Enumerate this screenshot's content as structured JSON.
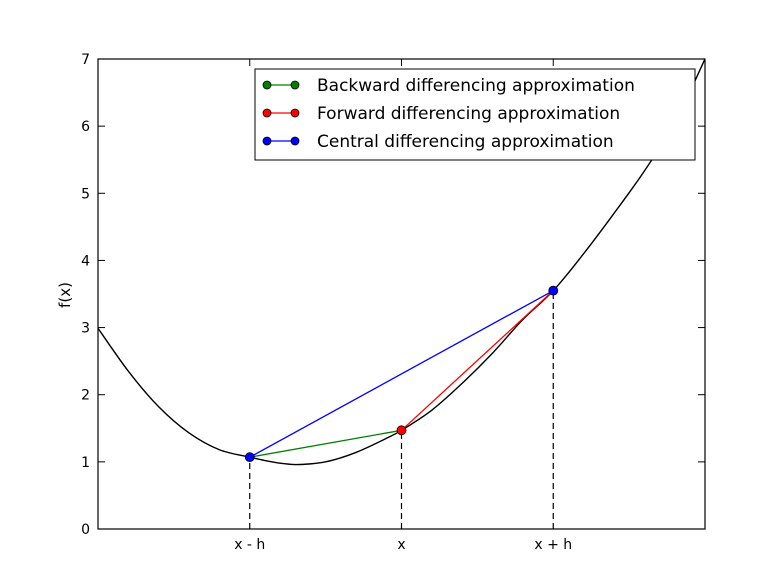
{
  "chart_data": {
    "type": "line",
    "title": "",
    "xlabel": "",
    "ylabel": "f(x)",
    "xlim": [
      0,
      4
    ],
    "ylim": [
      0,
      7
    ],
    "yticks": [
      "0",
      "1",
      "2",
      "3",
      "4",
      "5",
      "6",
      "7"
    ],
    "xticks": [
      {
        "x": 1,
        "label": "x - h"
      },
      {
        "x": 2,
        "label": "x"
      },
      {
        "x": 3,
        "label": "x + h"
      }
    ],
    "curve": {
      "color": "#000000",
      "points": [
        [
          0,
          2.99
        ],
        [
          0.2,
          2.35
        ],
        [
          0.4,
          1.82
        ],
        [
          0.6,
          1.43
        ],
        [
          0.8,
          1.18
        ],
        [
          1.0,
          1.07
        ],
        [
          1.1,
          1.02
        ],
        [
          1.2,
          0.98
        ],
        [
          1.3,
          0.96
        ],
        [
          1.4,
          0.97
        ],
        [
          1.5,
          1.0
        ],
        [
          1.6,
          1.06
        ],
        [
          1.7,
          1.14
        ],
        [
          1.8,
          1.24
        ],
        [
          1.9,
          1.35
        ],
        [
          2.0,
          1.47
        ],
        [
          2.2,
          1.77
        ],
        [
          2.4,
          2.17
        ],
        [
          2.6,
          2.62
        ],
        [
          2.8,
          3.12
        ],
        [
          3.0,
          3.55
        ],
        [
          3.2,
          4.1
        ],
        [
          3.4,
          4.7
        ],
        [
          3.6,
          5.33
        ],
        [
          3.8,
          6.05
        ],
        [
          4.0,
          7.0
        ]
      ]
    },
    "series": [
      {
        "name": "Backward differencing approximation",
        "color": "#008000",
        "points": [
          [
            1,
            1.07
          ],
          [
            2,
            1.47
          ]
        ]
      },
      {
        "name": "Forward differencing approximation",
        "color": "#ff0000",
        "points": [
          [
            2,
            1.47
          ],
          [
            3,
            3.55
          ]
        ]
      },
      {
        "name": "Central differencing approximation",
        "color": "#0000ff",
        "points": [
          [
            1,
            1.07
          ],
          [
            3,
            3.55
          ]
        ]
      }
    ],
    "markers": [
      {
        "x": 1,
        "y": 1.07,
        "color": "#0000ff"
      },
      {
        "x": 2,
        "y": 1.47,
        "color": "#ff0000"
      },
      {
        "x": 3,
        "y": 3.55,
        "color": "#0000ff"
      }
    ],
    "dashed_guides": [
      1,
      2,
      3
    ],
    "legend_position": "top-right",
    "grid": false
  }
}
